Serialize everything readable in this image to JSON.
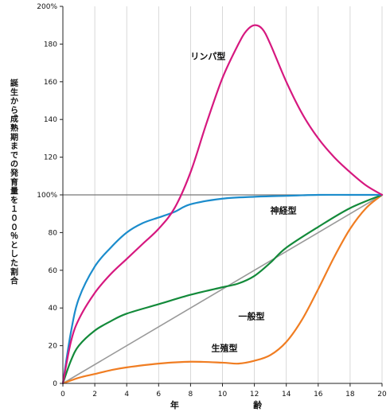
{
  "chart_data": {
    "type": "line",
    "ylabel": "誕生から成熟期までの発育量を１００％とした割合",
    "xlabel_parts": [
      "年",
      "齢"
    ],
    "xlim": [
      0,
      20
    ],
    "ylim": [
      0,
      200
    ],
    "x_ticks": [
      "0",
      "2",
      "4",
      "6",
      "8",
      "10",
      "12",
      "14",
      "16",
      "18",
      "20"
    ],
    "y_ticks": [
      {
        "value": 0,
        "label": "0"
      },
      {
        "value": 20,
        "label": "20"
      },
      {
        "value": 40,
        "label": "40"
      },
      {
        "value": 60,
        "label": "60"
      },
      {
        "value": 80,
        "label": "80"
      },
      {
        "value": 100,
        "label": "100%"
      },
      {
        "value": 120,
        "label": "120"
      },
      {
        "value": 140,
        "label": "140"
      },
      {
        "value": 160,
        "label": "160"
      },
      {
        "value": 180,
        "label": "180"
      },
      {
        "value": 200,
        "label": "200%"
      }
    ],
    "reference_line": 100,
    "series": [
      {
        "name": "リンパ型",
        "color": "#d6187f",
        "x": [
          0,
          0.5,
          1,
          2,
          3,
          4,
          5,
          6,
          7,
          8,
          9,
          10,
          11,
          11.5,
          12,
          12.5,
          13,
          14,
          15,
          16,
          17,
          18,
          19,
          20
        ],
        "y": [
          0,
          22,
          34,
          48,
          58,
          66,
          74,
          82,
          93,
          112,
          138,
          162,
          180,
          187,
          190,
          188,
          180,
          160,
          143,
          130,
          120,
          112,
          105,
          100
        ]
      },
      {
        "name": "神経型",
        "color": "#1b8ccc",
        "x": [
          0,
          0.5,
          1,
          2,
          3,
          4,
          5,
          6,
          7,
          8,
          10,
          12,
          14,
          16,
          18,
          20
        ],
        "y": [
          0,
          27,
          45,
          62,
          72,
          80,
          85,
          88,
          91,
          95,
          98,
          99,
          99.5,
          100,
          100,
          100
        ]
      },
      {
        "name": "一般型",
        "color": "#138a3a",
        "x": [
          0,
          0.5,
          1,
          2,
          3,
          4,
          6,
          8,
          10,
          11,
          12,
          13,
          14,
          16,
          18,
          20
        ],
        "y": [
          0,
          12,
          20,
          28,
          33,
          37,
          42,
          47,
          51,
          53,
          57,
          64,
          72,
          83,
          93,
          100
        ]
      },
      {
        "name": "生殖型",
        "color": "#f07d22",
        "x": [
          0,
          1,
          2,
          3,
          4,
          6,
          8,
          10,
          11,
          12,
          13,
          14,
          15,
          16,
          17,
          18,
          19,
          20
        ],
        "y": [
          0,
          3,
          5,
          7,
          8.5,
          10.5,
          11.5,
          11,
          10.5,
          12,
          15,
          22,
          34,
          50,
          67,
          82,
          93,
          100
        ]
      },
      {
        "name": "",
        "color": "#999999",
        "x": [
          0,
          20
        ],
        "y": [
          0,
          100
        ]
      }
    ]
  }
}
